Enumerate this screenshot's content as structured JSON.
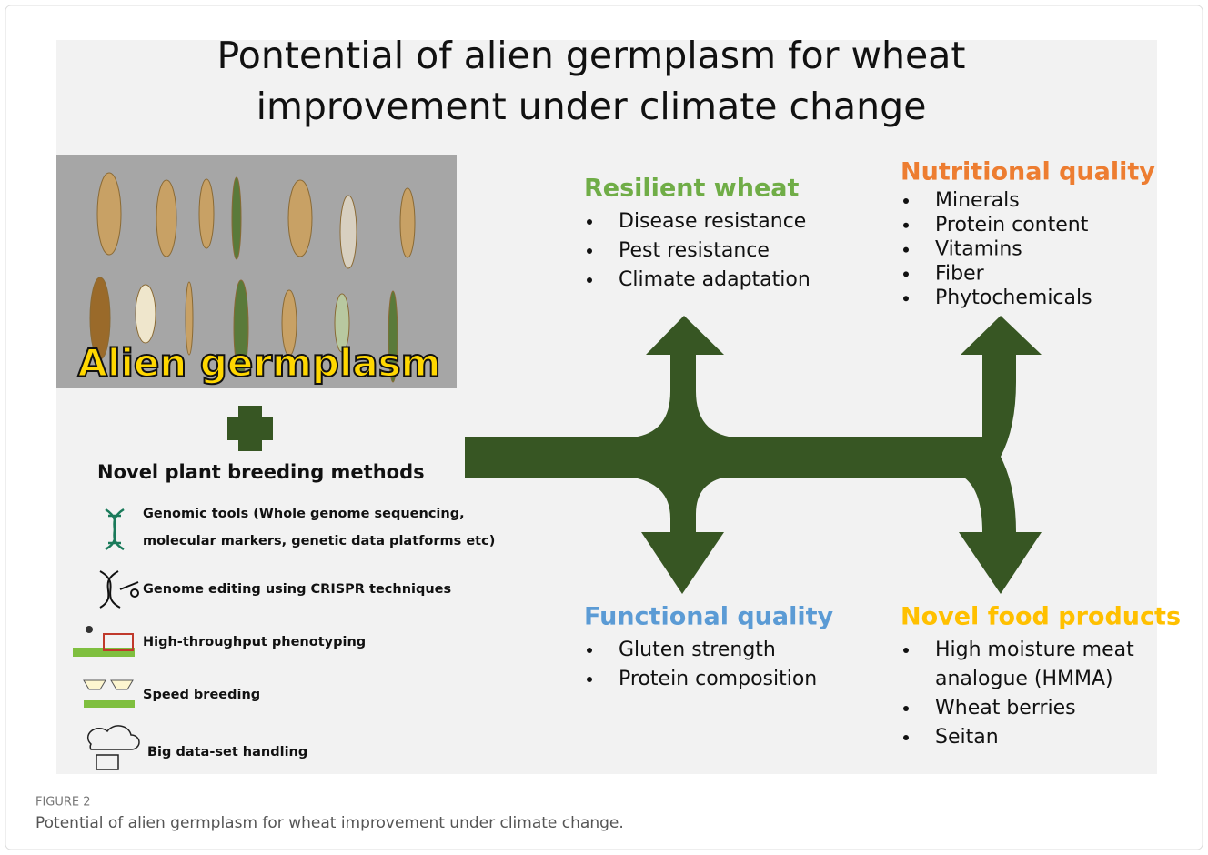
{
  "title_lines": [
    "Pontential of alien germplasm for wheat",
    "improvement under climate change"
  ],
  "image_label": "Alien germplasm",
  "methods": {
    "heading": "Novel plant breeding methods",
    "items": [
      [
        "Genomic tools (Whole genome sequencing,",
        "molecular markers, genetic data platforms etc)"
      ],
      [
        "Genome editing using CRISPR techniques"
      ],
      [
        "High-throughput phenotyping"
      ],
      [
        "Speed breeding"
      ],
      [
        "Big data-set handling"
      ]
    ]
  },
  "outcomes": [
    {
      "heading": "Resilient wheat",
      "color": "#70ad47",
      "items": [
        [
          "Disease resistance"
        ],
        [
          "Pest resistance"
        ],
        [
          "Climate adaptation"
        ]
      ]
    },
    {
      "heading": "Nutritional quality",
      "color": "#ed7d31",
      "items": [
        [
          "Minerals"
        ],
        [
          "Protein content"
        ],
        [
          "Vitamins"
        ],
        [
          "Fiber"
        ],
        [
          "Phytochemicals"
        ]
      ]
    },
    {
      "heading": "Functional quality",
      "color": "#5b9bd5",
      "items": [
        [
          "Gluten strength"
        ],
        [
          "Protein composition"
        ]
      ]
    },
    {
      "heading": "Novel food products",
      "color": "#ffc000",
      "items": [
        [
          "High moisture meat",
          "analogue (HMMA)"
        ],
        [
          "Wheat berries"
        ],
        [
          "Seitan"
        ]
      ]
    }
  ],
  "caption": {
    "label": "FIGURE 2",
    "text": "Potential of alien germplasm for wheat improvement under climate change."
  }
}
